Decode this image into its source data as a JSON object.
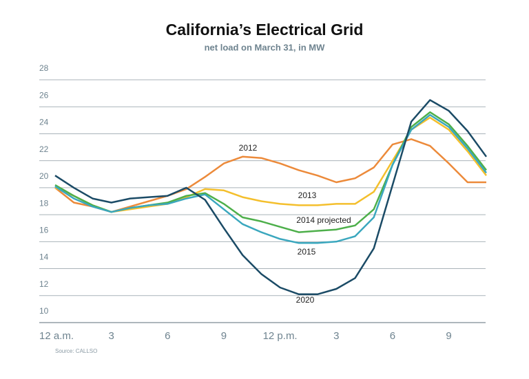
{
  "chart_data": {
    "type": "line",
    "title": "California’s Electrical Grid",
    "subtitle": "net load on March 31, in MW",
    "source": "Source: CALLSO",
    "x": [
      0,
      1,
      2,
      3,
      4,
      5,
      6,
      7,
      8,
      9,
      10,
      11,
      12,
      13,
      14,
      15,
      16,
      17,
      18,
      19,
      20,
      21,
      22,
      23
    ],
    "xlim": [
      0,
      23
    ],
    "xticks": [
      {
        "value": 0,
        "label": "12 a.m."
      },
      3,
      6,
      9,
      {
        "value": 12,
        "label": "12 p.m."
      },
      {
        "value": 15,
        "label": "3"
      },
      {
        "value": 18,
        "label": "6"
      },
      {
        "value": 21,
        "label": "9"
      }
    ],
    "ylim": [
      10,
      28
    ],
    "yticks": [
      10,
      12,
      14,
      16,
      18,
      20,
      22,
      24,
      26,
      28
    ],
    "grid": true,
    "series": [
      {
        "name": "2012",
        "color": "#ec8a3a",
        "values": [
          20.0,
          18.9,
          18.6,
          18.2,
          18.6,
          19.0,
          19.4,
          19.9,
          20.8,
          21.8,
          22.3,
          22.2,
          21.8,
          21.3,
          20.9,
          20.4,
          20.7,
          21.5,
          23.2,
          23.6,
          23.1,
          21.8,
          20.4,
          20.4
        ]
      },
      {
        "name": "2013",
        "color": "#f4bf2c",
        "values": [
          20.0,
          19.4,
          18.7,
          18.2,
          18.4,
          18.6,
          18.8,
          19.3,
          19.9,
          19.8,
          19.3,
          19.0,
          18.8,
          18.7,
          18.7,
          18.8,
          18.8,
          19.7,
          22.0,
          24.3,
          25.2,
          24.3,
          22.7,
          20.9
        ]
      },
      {
        "name": "2014 projected",
        "color": "#4daf4a",
        "values": [
          20.2,
          19.4,
          18.7,
          18.2,
          18.5,
          18.7,
          18.9,
          19.4,
          19.6,
          18.8,
          17.8,
          17.5,
          17.1,
          16.7,
          16.8,
          16.9,
          17.2,
          18.4,
          21.7,
          24.5,
          25.6,
          24.7,
          23.1,
          21.3
        ]
      },
      {
        "name": "2015",
        "color": "#3aa7be",
        "values": [
          20.1,
          19.2,
          18.6,
          18.2,
          18.5,
          18.7,
          18.8,
          19.2,
          19.5,
          18.4,
          17.3,
          16.7,
          16.2,
          15.9,
          15.9,
          16.0,
          16.4,
          17.8,
          21.7,
          24.3,
          25.4,
          24.5,
          22.9,
          21.1
        ]
      },
      {
        "name": "2020",
        "color": "#1b4b66",
        "values": [
          20.9,
          20.0,
          19.2,
          18.9,
          19.2,
          19.3,
          19.4,
          20.0,
          19.1,
          17.0,
          15.0,
          13.6,
          12.6,
          12.1,
          12.1,
          12.5,
          13.3,
          15.5,
          20.2,
          24.9,
          26.5,
          25.7,
          24.2,
          22.3
        ]
      }
    ]
  }
}
